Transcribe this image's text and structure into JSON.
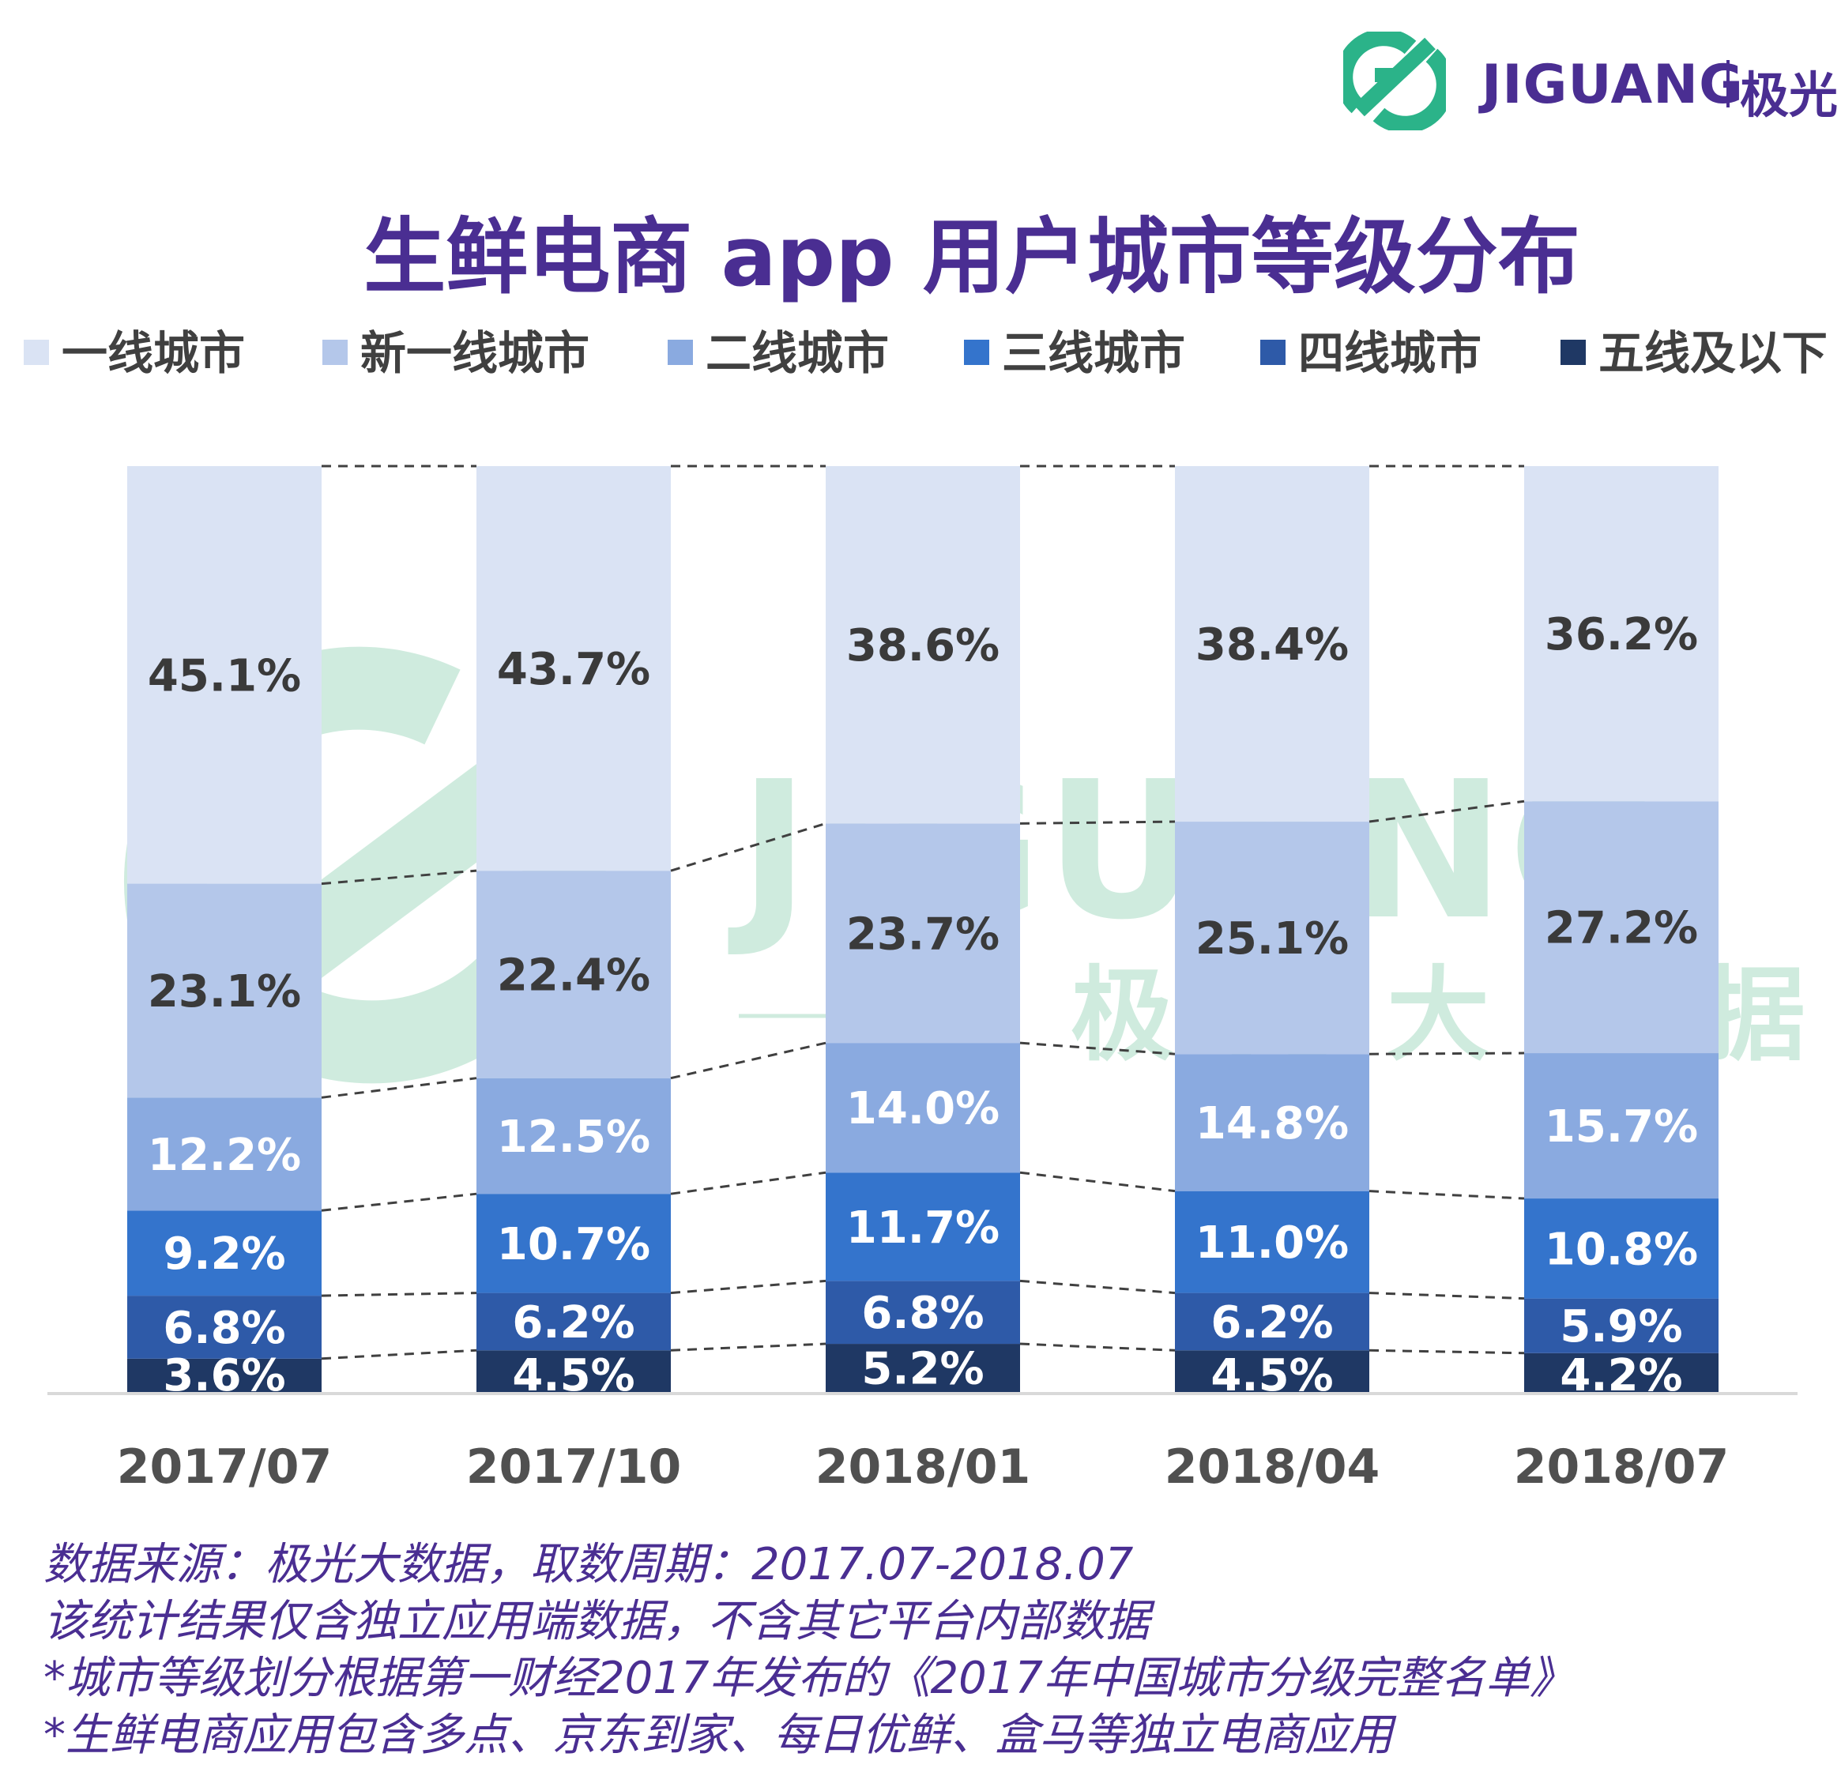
{
  "header": {
    "logo_text": "JIGUANG",
    "logo_cn": "极光"
  },
  "watermark": {
    "text_en": "JIGUANG",
    "text_cn": "极光大数据"
  },
  "chart_data": {
    "type": "bar",
    "stacked": true,
    "title": "生鲜电商 app 用户城市等级分布",
    "categories": [
      "2017/07",
      "2017/10",
      "2018/01",
      "2018/04",
      "2018/07"
    ],
    "series": [
      {
        "name": "五线及以下",
        "values": [
          3.6,
          4.5,
          5.2,
          4.5,
          4.2
        ],
        "color": "#1f3864"
      },
      {
        "name": "四线城市",
        "values": [
          6.8,
          6.2,
          6.8,
          6.2,
          5.9
        ],
        "color": "#2e5aa8"
      },
      {
        "name": "三线城市",
        "values": [
          9.2,
          10.7,
          11.7,
          11.0,
          10.8
        ],
        "color": "#3474cc"
      },
      {
        "name": "二线城市",
        "values": [
          12.2,
          12.5,
          14.0,
          14.8,
          15.7
        ],
        "color": "#8aaae0"
      },
      {
        "name": "新一线城市",
        "values": [
          23.1,
          22.4,
          23.7,
          25.1,
          27.2
        ],
        "color": "#b4c7ea"
      },
      {
        "name": "一线城市",
        "values": [
          45.1,
          43.7,
          38.6,
          38.4,
          36.2
        ],
        "color": "#dae3f4"
      }
    ],
    "legend": [
      "一线城市",
      "新一线城市",
      "二线城市",
      "三线城市",
      "四线城市",
      "五线及以下"
    ],
    "legend_colors": [
      "#dae3f4",
      "#b4c7ea",
      "#8aaae0",
      "#3474cc",
      "#2e5aa8",
      "#1f3864"
    ],
    "legend_position": "top",
    "label_dark_color": "#3a3a3a",
    "label_light_color": "#ffffff",
    "xlabel": "",
    "ylabel": "",
    "ylim": [
      0,
      100
    ],
    "grid": false
  },
  "footnotes": [
    "数据来源：极光大数据，取数周期：2017.07-2018.07",
    "该统计结果仅含独立应用端数据，不含其它平台内部数据",
    "*城市等级划分根据第一财经2017年发布的《2017年中国城市分级完整名单》",
    "*生鲜电商应用包含多点、京东到家、每日优鲜、盒马等独立电商应用"
  ]
}
